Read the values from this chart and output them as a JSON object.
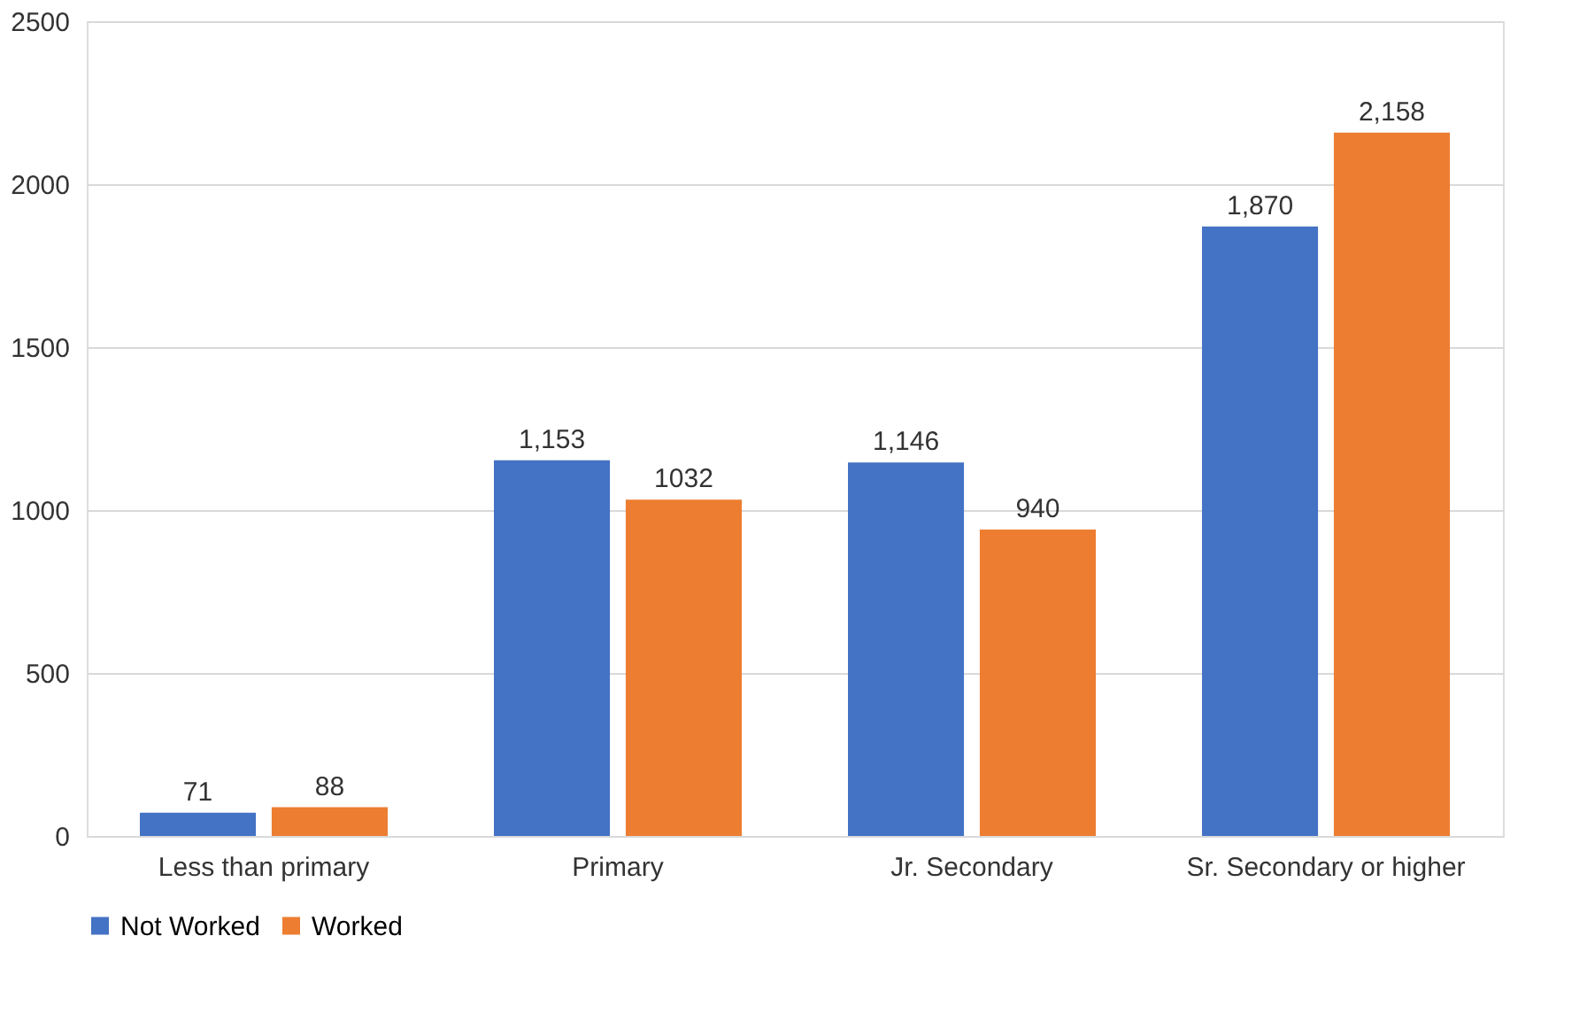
{
  "chart_data": {
    "type": "bar",
    "categories": [
      "Less than primary",
      "Primary",
      "Jr. Secondary",
      "Sr. Secondary or higher"
    ],
    "series": [
      {
        "name": "Not Worked",
        "color": "#4472c4",
        "values": [
          71,
          1153,
          1146,
          1870
        ],
        "value_labels": [
          "71",
          "1,153",
          "1,146",
          "1,870"
        ]
      },
      {
        "name": "Worked",
        "color": "#ed7d31",
        "values": [
          88,
          1032,
          940,
          2158
        ],
        "value_labels": [
          "88",
          "1032",
          "940",
          "2,158"
        ]
      }
    ],
    "ylim": [
      0,
      2500
    ],
    "yticks": [
      0,
      500,
      1000,
      1500,
      2000,
      2500
    ],
    "grid": "y",
    "legend": "bottom"
  }
}
